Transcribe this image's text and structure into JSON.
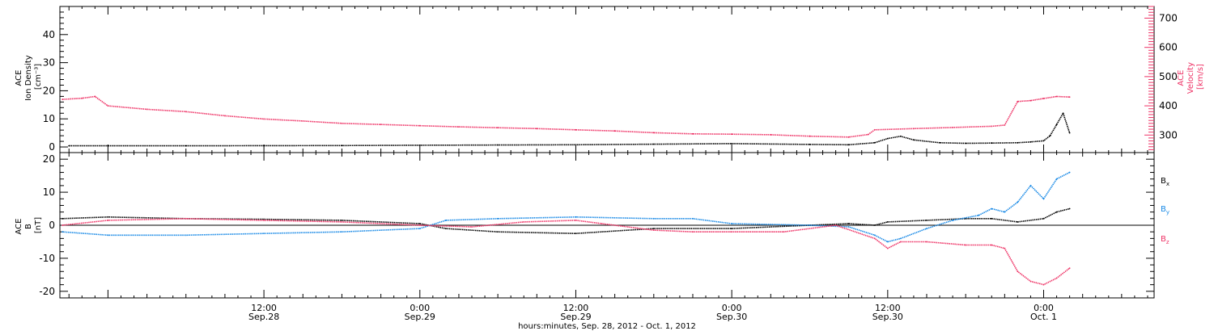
{
  "chart_data": {
    "type": "scatter",
    "x_axis": {
      "title": "hours:minutes, Sep. 28, 2012 - Oct.  1, 2012",
      "ticks": [
        {
          "time": "12:00",
          "date": "Sep.28",
          "t_hours": 12
        },
        {
          "time": "0:00",
          "date": "Sep.29",
          "t_hours": 24
        },
        {
          "time": "12:00",
          "date": "Sep.29",
          "t_hours": 36
        },
        {
          "time": "0:00",
          "date": "Sep.30",
          "t_hours": 48
        },
        {
          "time": "12:00",
          "date": "Sep.30",
          "t_hours": 60
        },
        {
          "time": "0:00",
          "date": "Oct. 1",
          "t_hours": 72
        }
      ],
      "range_hours": [
        -3.7,
        80.5
      ]
    },
    "panels": [
      {
        "id": "density-velocity",
        "left_axis": {
          "label_lines": [
            "ACE",
            "Ion Density",
            "[cm⁻³]"
          ],
          "ticks": [
            "40",
            "30",
            "20",
            "10",
            "0"
          ],
          "range": [
            -2,
            50
          ]
        },
        "right_axis": {
          "label_lines": [
            "ACE",
            "Velocity",
            "[km/s]"
          ],
          "ticks": [
            "700",
            "600",
            "500",
            "400",
            "300"
          ],
          "range": [
            240,
            740
          ]
        },
        "series": [
          {
            "name": "Ion Density",
            "color": "#000000",
            "axis": "left",
            "points": [
              [
                -3,
                0.4
              ],
              [
                6,
                0.4
              ],
              [
                18,
                0.5
              ],
              [
                24,
                0.6
              ],
              [
                30,
                0.7
              ],
              [
                36,
                0.8
              ],
              [
                42,
                1.0
              ],
              [
                48,
                1.2
              ],
              [
                54,
                0.9
              ],
              [
                57,
                0.8
              ],
              [
                59,
                1.5
              ],
              [
                60,
                3.0
              ],
              [
                61,
                3.8
              ],
              [
                62,
                2.5
              ],
              [
                64,
                1.5
              ],
              [
                66,
                1.3
              ],
              [
                68,
                1.4
              ],
              [
                70,
                1.5
              ],
              [
                71,
                1.8
              ],
              [
                72,
                2.2
              ],
              [
                72.5,
                4
              ],
              [
                73,
                8
              ],
              [
                73.5,
                12
              ],
              [
                74,
                5
              ]
            ]
          },
          {
            "name": "Velocity",
            "color": "#ee3366",
            "axis": "right",
            "points": [
              [
                -3.5,
                422
              ],
              [
                -2,
                426
              ],
              [
                -1,
                432
              ],
              [
                0,
                400
              ],
              [
                3,
                388
              ],
              [
                6,
                380
              ],
              [
                9,
                366
              ],
              [
                12,
                355
              ],
              [
                15,
                348
              ],
              [
                18,
                340
              ],
              [
                21,
                336
              ],
              [
                24,
                332
              ],
              [
                27,
                328
              ],
              [
                30,
                325
              ],
              [
                33,
                322
              ],
              [
                36,
                318
              ],
              [
                39,
                314
              ],
              [
                42,
                308
              ],
              [
                45,
                304
              ],
              [
                48,
                303
              ],
              [
                51,
                301
              ],
              [
                54,
                296
              ],
              [
                57,
                293
              ],
              [
                58.5,
                302
              ],
              [
                59,
                318
              ],
              [
                62,
                322
              ],
              [
                65,
                326
              ],
              [
                68,
                330
              ],
              [
                69,
                334
              ],
              [
                70,
                415
              ],
              [
                71,
                418
              ],
              [
                72,
                425
              ],
              [
                73,
                432
              ],
              [
                74,
                430
              ]
            ]
          }
        ]
      },
      {
        "id": "magnetic-field",
        "left_axis": {
          "label_lines": [
            "ACE",
            "B",
            "[nT]"
          ],
          "ticks": [
            "20",
            "10",
            "0",
            "-10",
            "-20"
          ],
          "range": [
            -22,
            22
          ]
        },
        "legend": [
          {
            "name": "Bx",
            "base": "B",
            "sub": "x",
            "color": "#000000"
          },
          {
            "name": "By",
            "base": "B",
            "sub": "y",
            "color": "#1a8ae6"
          },
          {
            "name": "Bz",
            "base": "B",
            "sub": "z",
            "color": "#ee3366"
          }
        ],
        "series": [
          {
            "name": "Bx",
            "color": "#000000",
            "points": [
              [
                -3.5,
                2
              ],
              [
                0,
                2.5
              ],
              [
                6,
                2
              ],
              [
                12,
                1.8
              ],
              [
                18,
                1.5
              ],
              [
                24,
                0.5
              ],
              [
                26,
                -1
              ],
              [
                30,
                -2
              ],
              [
                36,
                -2.5
              ],
              [
                42,
                -1
              ],
              [
                48,
                -1
              ],
              [
                54,
                0
              ],
              [
                57,
                0.5
              ],
              [
                59,
                0
              ],
              [
                60,
                1
              ],
              [
                63,
                1.5
              ],
              [
                66,
                2
              ],
              [
                68,
                2
              ],
              [
                70,
                1
              ],
              [
                72,
                2
              ],
              [
                73,
                4
              ],
              [
                74,
                5
              ]
            ]
          },
          {
            "name": "By",
            "color": "#1a8ae6",
            "points": [
              [
                -3.5,
                -2
              ],
              [
                0,
                -3
              ],
              [
                6,
                -3
              ],
              [
                12,
                -2.5
              ],
              [
                18,
                -2
              ],
              [
                24,
                -1
              ],
              [
                26,
                1.5
              ],
              [
                30,
                2
              ],
              [
                36,
                2.5
              ],
              [
                42,
                2
              ],
              [
                45,
                2
              ],
              [
                48,
                0.5
              ],
              [
                54,
                0
              ],
              [
                57,
                -0.5
              ],
              [
                59,
                -3
              ],
              [
                60,
                -5
              ],
              [
                61,
                -4
              ],
              [
                63,
                -1
              ],
              [
                65,
                1.5
              ],
              [
                67,
                3
              ],
              [
                68,
                5
              ],
              [
                69,
                4
              ],
              [
                70,
                7
              ],
              [
                71,
                12
              ],
              [
                72,
                8
              ],
              [
                73,
                14
              ],
              [
                74,
                16
              ]
            ]
          },
          {
            "name": "Bz",
            "color": "#ee3366",
            "points": [
              [
                -3.5,
                0
              ],
              [
                0,
                1.5
              ],
              [
                6,
                2
              ],
              [
                12,
                1.5
              ],
              [
                18,
                1
              ],
              [
                24,
                0
              ],
              [
                28,
                -0.5
              ],
              [
                32,
                1
              ],
              [
                36,
                1.5
              ],
              [
                38,
                0.5
              ],
              [
                42,
                -1.5
              ],
              [
                45,
                -2
              ],
              [
                48,
                -2
              ],
              [
                52,
                -2
              ],
              [
                56,
                0
              ],
              [
                59,
                -4
              ],
              [
                60,
                -7
              ],
              [
                61,
                -5
              ],
              [
                63,
                -5
              ],
              [
                66,
                -6
              ],
              [
                68,
                -6
              ],
              [
                69,
                -7
              ],
              [
                70,
                -14
              ],
              [
                71,
                -17
              ],
              [
                72,
                -18
              ],
              [
                73,
                -16
              ],
              [
                74,
                -13
              ]
            ]
          }
        ]
      }
    ]
  }
}
